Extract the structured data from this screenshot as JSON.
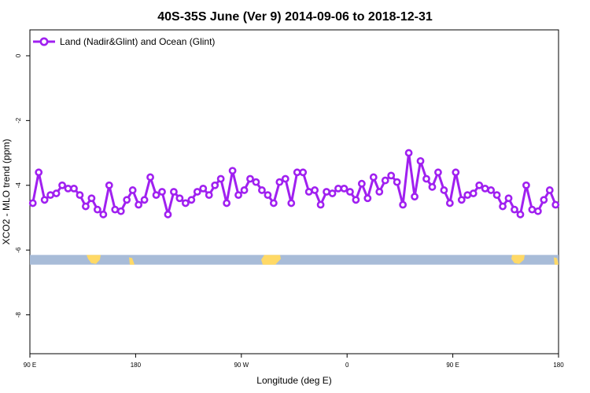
{
  "chart_data": {
    "type": "line",
    "title": "40S-35S June (Ver 9)   2014-09-06 to 2018-12-31",
    "xlabel": "Longitude (deg E)",
    "ylabel": "XCO2 - MLO trend (ppm)",
    "xlim": [
      90,
      540
    ],
    "ylim": [
      -9.2,
      0.8
    ],
    "xticks": [
      {
        "value": 90,
        "label": "90 E"
      },
      {
        "value": 180,
        "label": "180"
      },
      {
        "value": 270,
        "label": "90 W"
      },
      {
        "value": 360,
        "label": "0"
      },
      {
        "value": 450,
        "label": "90 E"
      },
      {
        "value": 540,
        "label": "180"
      }
    ],
    "yticks": [
      {
        "value": 0,
        "label": "0"
      },
      {
        "value": -2,
        "label": "-2"
      },
      {
        "value": -4,
        "label": "-4"
      },
      {
        "value": -6,
        "label": "-6"
      },
      {
        "value": -8,
        "label": "-8"
      }
    ],
    "grid": false,
    "legend": {
      "position": "top-left"
    },
    "colors": {
      "series": "#a020f0",
      "band": "#a8bcd8",
      "land": "#ffd966"
    },
    "series": [
      {
        "name": "Land (Nadir&Glint) and Ocean (Glint)",
        "x": [
          92.5,
          97.5,
          102.5,
          107.5,
          112.5,
          117.5,
          122.5,
          127.5,
          132.5,
          137.5,
          142.5,
          147.5,
          152.5,
          157.5,
          162.5,
          167.5,
          172.5,
          177.5,
          182.5,
          187.5,
          192.5,
          197.5,
          202.5,
          207.5,
          212.5,
          217.5,
          222.5,
          227.5,
          232.5,
          237.5,
          242.5,
          247.5,
          252.5,
          257.5,
          262.5,
          267.5,
          272.5,
          277.5,
          282.5,
          287.5,
          292.5,
          297.5,
          302.5,
          307.5,
          312.5,
          317.5,
          322.5,
          327.5,
          332.5,
          337.5,
          342.5,
          347.5,
          352.5,
          357.5,
          362.5,
          367.5,
          372.5,
          377.5,
          382.5,
          387.5,
          392.5,
          397.5,
          402.5,
          407.5,
          412.5,
          417.5,
          422.5,
          427.5,
          432.5,
          437.5,
          442.5,
          447.5,
          452.5,
          457.5,
          462.5,
          467.5,
          472.5,
          477.5,
          482.5,
          487.5,
          492.5,
          497.5,
          502.5,
          507.5,
          512.5,
          517.5,
          522.5,
          527.5,
          532.5,
          537.5
        ],
        "values": [
          -4.55,
          -3.6,
          -4.45,
          -4.3,
          -4.25,
          -4.0,
          -4.1,
          -4.1,
          -4.3,
          -4.65,
          -4.4,
          -4.75,
          -4.9,
          -4.0,
          -4.75,
          -4.8,
          -4.45,
          -4.15,
          -4.6,
          -4.45,
          -3.75,
          -4.3,
          -4.2,
          -4.9,
          -4.2,
          -4.4,
          -4.55,
          -4.45,
          -4.2,
          -4.1,
          -4.3,
          -4.0,
          -3.8,
          -4.55,
          -3.55,
          -4.3,
          -4.15,
          -3.8,
          -3.9,
          -4.15,
          -4.3,
          -4.55,
          -3.9,
          -3.8,
          -4.55,
          -3.6,
          -3.6,
          -4.2,
          -4.15,
          -4.6,
          -4.2,
          -4.25,
          -4.1,
          -4.1,
          -4.2,
          -4.45,
          -3.95,
          -4.4,
          -3.75,
          -4.2,
          -3.85,
          -3.7,
          -3.9,
          -4.6,
          -3.0,
          -4.35,
          -3.25,
          -3.8,
          -4.05,
          -3.6,
          -4.15,
          -4.55,
          -3.6,
          -4.45,
          -4.3,
          -4.25,
          -4.0,
          -4.1,
          -4.15,
          -4.3,
          -4.65,
          -4.4,
          -4.75,
          -4.9,
          -4.0,
          -4.75,
          -4.8,
          -4.45,
          -4.15,
          -4.6
        ]
      }
    ],
    "band": {
      "y_top": -6.15,
      "y_bottom": -6.45
    }
  }
}
